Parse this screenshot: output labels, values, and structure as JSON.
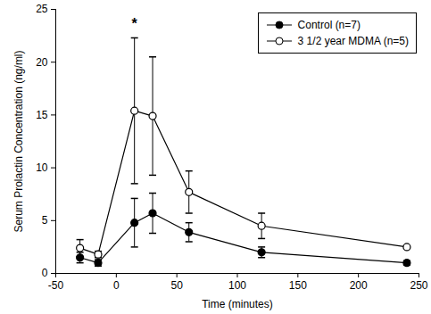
{
  "chart_data": {
    "type": "line",
    "x_label": "Time (minutes)",
    "y_label": "Serum Prolactin Concentration (ng/ml)",
    "x": [
      -30,
      -15,
      15,
      30,
      60,
      120,
      240
    ],
    "series": [
      {
        "name": "Control (n=7)",
        "color": "#000000",
        "marker": "circle",
        "line_style": "solid",
        "values": [
          1.5,
          1.0,
          4.8,
          5.7,
          3.9,
          2.0,
          1.0
        ],
        "errors": [
          0.5,
          0.3,
          2.3,
          1.9,
          0.9,
          0.5,
          0.2
        ]
      },
      {
        "name": "3 1/2 year MDMA (n=5)",
        "color": "#000000",
        "marker": "open_circle",
        "line_style": "solid",
        "values": [
          2.4,
          1.8,
          15.4,
          14.9,
          7.7,
          4.5,
          2.5
        ],
        "errors": [
          0.8,
          0.3,
          6.9,
          5.6,
          2.0,
          1.2,
          0.1
        ]
      }
    ],
    "annotations": [
      {
        "text": "*",
        "x": 15,
        "y": 23.6
      }
    ],
    "xlim": [
      -50,
      250
    ],
    "xticks": [
      -50,
      0,
      50,
      100,
      150,
      200,
      250
    ],
    "ylim": [
      0,
      25
    ],
    "yticks": [
      0,
      5,
      10,
      15,
      20,
      25
    ],
    "legend": "upper right",
    "grid": false
  }
}
